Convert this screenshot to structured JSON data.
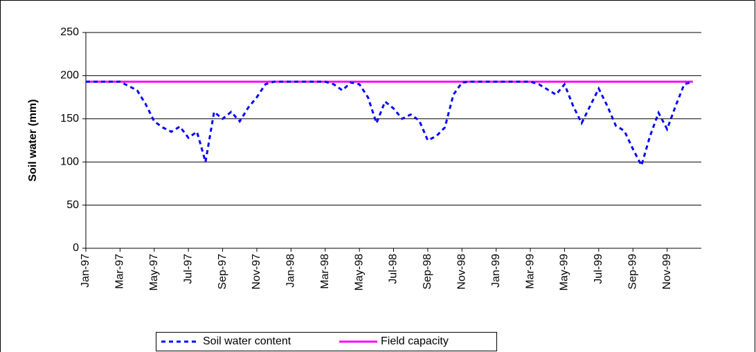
{
  "chart_data": {
    "type": "line",
    "y_label": "Soil water (mm)",
    "x": [
      0,
      0.5,
      1,
      1.5,
      2,
      2.5,
      3,
      3.5,
      4,
      4.5,
      5,
      5.5,
      6,
      6.5,
      7,
      7.5,
      8,
      8.5,
      9,
      9.5,
      10,
      10.5,
      11,
      11.5,
      12,
      12.5,
      13,
      13.5,
      14,
      14.5,
      15,
      15.5,
      16,
      16.5,
      17,
      17.5,
      18,
      18.5,
      19,
      19.5,
      20,
      20.5,
      21,
      21.5,
      22,
      22.5,
      23,
      23.5,
      24,
      24.5,
      25,
      25.5,
      26,
      26.5,
      27,
      27.5,
      28,
      28.5,
      29,
      29.5,
      30,
      30.5,
      31,
      31.5,
      32,
      32.5,
      33,
      33.5,
      34,
      34.5,
      35,
      35.5
    ],
    "series": [
      {
        "name": "Soil water content",
        "color": "#0000ff",
        "dashed": true,
        "values": [
          193,
          193,
          193,
          193,
          193,
          188,
          183,
          167,
          147,
          140,
          135,
          141,
          128,
          135,
          100,
          158,
          150,
          158,
          147,
          163,
          175,
          190,
          193,
          193,
          193,
          193,
          193,
          193,
          193,
          190,
          183,
          192,
          190,
          175,
          145,
          170,
          162,
          150,
          155,
          148,
          125,
          130,
          140,
          178,
          192,
          193,
          193,
          193,
          193,
          193,
          193,
          193,
          193,
          190,
          184,
          178,
          190,
          165,
          145,
          165,
          185,
          165,
          142,
          136,
          115,
          96,
          130,
          157,
          138,
          165,
          190,
          193
        ]
      },
      {
        "name": "Field capacity",
        "color": "#ff00ff",
        "dashed": false,
        "values": [
          193,
          193,
          193,
          193,
          193,
          193,
          193,
          193,
          193,
          193,
          193,
          193,
          193,
          193,
          193,
          193,
          193,
          193,
          193,
          193,
          193,
          193,
          193,
          193,
          193,
          193,
          193,
          193,
          193,
          193,
          193,
          193,
          193,
          193,
          193,
          193,
          193,
          193,
          193,
          193,
          193,
          193,
          193,
          193,
          193,
          193,
          193,
          193,
          193,
          193,
          193,
          193,
          193,
          193,
          193,
          193,
          193,
          193,
          193,
          193,
          193,
          193,
          193,
          193,
          193,
          193,
          193,
          193,
          193,
          193,
          193,
          193
        ]
      }
    ],
    "xlim": [
      0,
      36
    ],
    "xticks": [
      {
        "value": 0,
        "label": "Jan-97"
      },
      {
        "value": 2,
        "label": "Mar-97"
      },
      {
        "value": 4,
        "label": "May-97"
      },
      {
        "value": 6,
        "label": "Jul-97"
      },
      {
        "value": 8,
        "label": "Sep-97"
      },
      {
        "value": 10,
        "label": "Nov-97"
      },
      {
        "value": 12,
        "label": "Jan-98"
      },
      {
        "value": 14,
        "label": "Mar-98"
      },
      {
        "value": 16,
        "label": "May-98"
      },
      {
        "value": 18,
        "label": "Jul-98"
      },
      {
        "value": 20,
        "label": "Sep-98"
      },
      {
        "value": 22,
        "label": "Nov-98"
      },
      {
        "value": 24,
        "label": "Jan-99"
      },
      {
        "value": 26,
        "label": "Mar-99"
      },
      {
        "value": 28,
        "label": "May-99"
      },
      {
        "value": 30,
        "label": "Jul-99"
      },
      {
        "value": 32,
        "label": "Sep-99"
      },
      {
        "value": 34,
        "label": "Nov-99"
      }
    ],
    "ylim": [
      0,
      250
    ],
    "yticks": [
      0,
      50,
      100,
      150,
      200,
      250
    ],
    "grid": true,
    "legend": "bottom"
  }
}
